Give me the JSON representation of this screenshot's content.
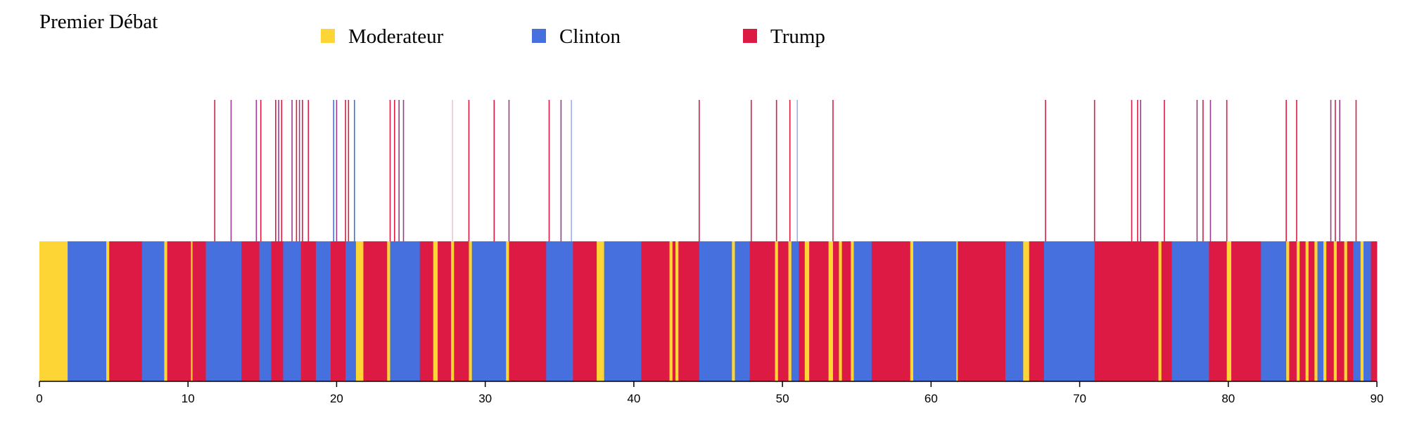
{
  "chart_data": {
    "type": "bar",
    "title": "Premier Débat",
    "xlabel": "",
    "ylabel": "",
    "xlim": [
      0,
      90
    ],
    "x_ticks": [
      "0",
      "10",
      "20",
      "30",
      "40",
      "50",
      "60",
      "70",
      "80",
      "90"
    ],
    "grid": false,
    "legend_position": "top",
    "legend": [
      {
        "name": "Moderateur",
        "color": "#fdd535"
      },
      {
        "name": "Clinton",
        "color": "#4570de"
      },
      {
        "name": "Trump",
        "color": "#dc1a43"
      }
    ],
    "segments": [
      {
        "start": 0.0,
        "end": 1.9,
        "speaker": "Moderateur"
      },
      {
        "start": 1.9,
        "end": 4.5,
        "speaker": "Clinton"
      },
      {
        "start": 4.5,
        "end": 4.7,
        "speaker": "Moderateur"
      },
      {
        "start": 4.7,
        "end": 6.9,
        "speaker": "Trump"
      },
      {
        "start": 6.9,
        "end": 8.4,
        "speaker": "Clinton"
      },
      {
        "start": 8.4,
        "end": 8.6,
        "speaker": "Moderateur"
      },
      {
        "start": 8.6,
        "end": 10.2,
        "speaker": "Trump"
      },
      {
        "start": 10.2,
        "end": 10.3,
        "speaker": "Moderateur"
      },
      {
        "start": 10.3,
        "end": 11.2,
        "speaker": "Trump"
      },
      {
        "start": 11.2,
        "end": 13.6,
        "speaker": "Clinton"
      },
      {
        "start": 13.6,
        "end": 14.8,
        "speaker": "Trump"
      },
      {
        "start": 14.8,
        "end": 15.6,
        "speaker": "Clinton"
      },
      {
        "start": 15.6,
        "end": 16.4,
        "speaker": "Trump"
      },
      {
        "start": 16.4,
        "end": 17.6,
        "speaker": "Clinton"
      },
      {
        "start": 17.6,
        "end": 18.6,
        "speaker": "Trump"
      },
      {
        "start": 18.6,
        "end": 19.6,
        "speaker": "Clinton"
      },
      {
        "start": 19.6,
        "end": 20.6,
        "speaker": "Trump"
      },
      {
        "start": 20.6,
        "end": 21.3,
        "speaker": "Clinton"
      },
      {
        "start": 21.3,
        "end": 21.8,
        "speaker": "Moderateur"
      },
      {
        "start": 21.8,
        "end": 23.4,
        "speaker": "Trump"
      },
      {
        "start": 23.4,
        "end": 23.6,
        "speaker": "Moderateur"
      },
      {
        "start": 23.6,
        "end": 25.6,
        "speaker": "Clinton"
      },
      {
        "start": 25.6,
        "end": 26.5,
        "speaker": "Trump"
      },
      {
        "start": 26.5,
        "end": 26.8,
        "speaker": "Moderateur"
      },
      {
        "start": 26.8,
        "end": 27.7,
        "speaker": "Trump"
      },
      {
        "start": 27.7,
        "end": 27.9,
        "speaker": "Moderateur"
      },
      {
        "start": 27.9,
        "end": 28.9,
        "speaker": "Trump"
      },
      {
        "start": 28.9,
        "end": 29.1,
        "speaker": "Moderateur"
      },
      {
        "start": 29.1,
        "end": 31.4,
        "speaker": "Clinton"
      },
      {
        "start": 31.4,
        "end": 31.6,
        "speaker": "Moderateur"
      },
      {
        "start": 31.6,
        "end": 34.1,
        "speaker": "Trump"
      },
      {
        "start": 34.1,
        "end": 35.9,
        "speaker": "Clinton"
      },
      {
        "start": 35.9,
        "end": 37.5,
        "speaker": "Trump"
      },
      {
        "start": 37.5,
        "end": 38.0,
        "speaker": "Moderateur"
      },
      {
        "start": 38.0,
        "end": 40.5,
        "speaker": "Clinton"
      },
      {
        "start": 40.5,
        "end": 42.4,
        "speaker": "Trump"
      },
      {
        "start": 42.4,
        "end": 42.6,
        "speaker": "Moderateur"
      },
      {
        "start": 42.6,
        "end": 42.8,
        "speaker": "Trump"
      },
      {
        "start": 42.8,
        "end": 43.0,
        "speaker": "Moderateur"
      },
      {
        "start": 43.0,
        "end": 44.4,
        "speaker": "Trump"
      },
      {
        "start": 44.4,
        "end": 46.6,
        "speaker": "Clinton"
      },
      {
        "start": 46.6,
        "end": 46.8,
        "speaker": "Moderateur"
      },
      {
        "start": 46.8,
        "end": 47.8,
        "speaker": "Clinton"
      },
      {
        "start": 47.8,
        "end": 49.5,
        "speaker": "Trump"
      },
      {
        "start": 49.5,
        "end": 49.7,
        "speaker": "Moderateur"
      },
      {
        "start": 49.7,
        "end": 50.4,
        "speaker": "Trump"
      },
      {
        "start": 50.4,
        "end": 50.6,
        "speaker": "Moderateur"
      },
      {
        "start": 50.6,
        "end": 51.1,
        "speaker": "Clinton"
      },
      {
        "start": 51.1,
        "end": 51.5,
        "speaker": "Trump"
      },
      {
        "start": 51.5,
        "end": 51.8,
        "speaker": "Moderateur"
      },
      {
        "start": 51.8,
        "end": 53.1,
        "speaker": "Trump"
      },
      {
        "start": 53.1,
        "end": 53.4,
        "speaker": "Moderateur"
      },
      {
        "start": 53.4,
        "end": 53.8,
        "speaker": "Trump"
      },
      {
        "start": 53.8,
        "end": 54.0,
        "speaker": "Moderateur"
      },
      {
        "start": 54.0,
        "end": 54.6,
        "speaker": "Trump"
      },
      {
        "start": 54.6,
        "end": 54.8,
        "speaker": "Moderateur"
      },
      {
        "start": 54.8,
        "end": 56.0,
        "speaker": "Clinton"
      },
      {
        "start": 56.0,
        "end": 58.6,
        "speaker": "Trump"
      },
      {
        "start": 58.6,
        "end": 58.8,
        "speaker": "Moderateur"
      },
      {
        "start": 58.8,
        "end": 61.7,
        "speaker": "Clinton"
      },
      {
        "start": 61.7,
        "end": 61.8,
        "speaker": "Moderateur"
      },
      {
        "start": 61.8,
        "end": 65.0,
        "speaker": "Trump"
      },
      {
        "start": 65.0,
        "end": 66.2,
        "speaker": "Clinton"
      },
      {
        "start": 66.2,
        "end": 66.6,
        "speaker": "Moderateur"
      },
      {
        "start": 66.6,
        "end": 67.6,
        "speaker": "Trump"
      },
      {
        "start": 67.6,
        "end": 71.0,
        "speaker": "Clinton"
      },
      {
        "start": 71.0,
        "end": 75.3,
        "speaker": "Trump"
      },
      {
        "start": 75.3,
        "end": 75.5,
        "speaker": "Moderateur"
      },
      {
        "start": 75.5,
        "end": 76.2,
        "speaker": "Trump"
      },
      {
        "start": 76.2,
        "end": 78.7,
        "speaker": "Clinton"
      },
      {
        "start": 78.7,
        "end": 79.9,
        "speaker": "Trump"
      },
      {
        "start": 79.9,
        "end": 80.2,
        "speaker": "Moderateur"
      },
      {
        "start": 80.2,
        "end": 82.2,
        "speaker": "Trump"
      },
      {
        "start": 82.2,
        "end": 83.9,
        "speaker": "Clinton"
      },
      {
        "start": 83.9,
        "end": 84.1,
        "speaker": "Moderateur"
      },
      {
        "start": 84.1,
        "end": 84.6,
        "speaker": "Trump"
      },
      {
        "start": 84.6,
        "end": 84.8,
        "speaker": "Moderateur"
      },
      {
        "start": 84.8,
        "end": 85.2,
        "speaker": "Trump"
      },
      {
        "start": 85.2,
        "end": 85.4,
        "speaker": "Moderateur"
      },
      {
        "start": 85.4,
        "end": 85.8,
        "speaker": "Trump"
      },
      {
        "start": 85.8,
        "end": 86.0,
        "speaker": "Moderateur"
      },
      {
        "start": 86.0,
        "end": 86.4,
        "speaker": "Clinton"
      },
      {
        "start": 86.4,
        "end": 86.6,
        "speaker": "Moderateur"
      },
      {
        "start": 86.6,
        "end": 87.1,
        "speaker": "Trump"
      },
      {
        "start": 87.1,
        "end": 87.3,
        "speaker": "Moderateur"
      },
      {
        "start": 87.3,
        "end": 87.8,
        "speaker": "Trump"
      },
      {
        "start": 87.8,
        "end": 88.0,
        "speaker": "Moderateur"
      },
      {
        "start": 88.0,
        "end": 88.4,
        "speaker": "Trump"
      },
      {
        "start": 88.4,
        "end": 88.9,
        "speaker": "Clinton"
      },
      {
        "start": 88.9,
        "end": 89.1,
        "speaker": "Moderateur"
      },
      {
        "start": 89.1,
        "end": 89.6,
        "speaker": "Clinton"
      },
      {
        "start": 89.6,
        "end": 90.0,
        "speaker": "Trump"
      }
    ],
    "interruptions": [
      {
        "x": 11.8,
        "color": "#dc1a43"
      },
      {
        "x": 12.9,
        "color": "#9b3a8c"
      },
      {
        "x": 14.6,
        "color": "#9b3a8c"
      },
      {
        "x": 14.9,
        "color": "#dc1a43"
      },
      {
        "x": 15.9,
        "color": "#dc1a43"
      },
      {
        "x": 16.1,
        "color": "#9b3a8c"
      },
      {
        "x": 16.3,
        "color": "#dc1a43"
      },
      {
        "x": 17.0,
        "color": "#9b3a8c"
      },
      {
        "x": 17.3,
        "color": "#dc1a43"
      },
      {
        "x": 17.5,
        "color": "#9b3a8c"
      },
      {
        "x": 17.7,
        "color": "#dc1a43"
      },
      {
        "x": 18.1,
        "color": "#dc1a43"
      },
      {
        "x": 19.8,
        "color": "#4570de"
      },
      {
        "x": 20.0,
        "color": "#9b3a8c"
      },
      {
        "x": 20.6,
        "color": "#dc1a43"
      },
      {
        "x": 20.8,
        "color": "#dc1a43"
      },
      {
        "x": 21.2,
        "color": "#4570de"
      },
      {
        "x": 23.6,
        "color": "#dc1a43"
      },
      {
        "x": 23.9,
        "color": "#dc1a43"
      },
      {
        "x": 24.2,
        "color": "#9b3a8c"
      },
      {
        "x": 24.5,
        "color": "#9b3a8c"
      },
      {
        "x": 27.8,
        "color": "#f2c6d0"
      },
      {
        "x": 28.9,
        "color": "#dc1a43"
      },
      {
        "x": 30.6,
        "color": "#dc1a43"
      },
      {
        "x": 31.6,
        "color": "#9b3a8c"
      },
      {
        "x": 34.3,
        "color": "#dc1a43"
      },
      {
        "x": 35.1,
        "color": "#9b3a8c"
      },
      {
        "x": 35.8,
        "color": "#9bb0ec"
      },
      {
        "x": 44.4,
        "color": "#dc1a43"
      },
      {
        "x": 47.9,
        "color": "#dc1a43"
      },
      {
        "x": 49.6,
        "color": "#dc1a43"
      },
      {
        "x": 50.5,
        "color": "#dc1a43"
      },
      {
        "x": 51.0,
        "color": "#9bb0ec"
      },
      {
        "x": 53.4,
        "color": "#dc1a43"
      },
      {
        "x": 67.7,
        "color": "#dc1a43"
      },
      {
        "x": 71.0,
        "color": "#dc1a43"
      },
      {
        "x": 73.5,
        "color": "#dc1a43"
      },
      {
        "x": 73.9,
        "color": "#dc1a43"
      },
      {
        "x": 74.1,
        "color": "#9b3a8c"
      },
      {
        "x": 75.7,
        "color": "#dc1a43"
      },
      {
        "x": 77.9,
        "color": "#9b3a8c"
      },
      {
        "x": 78.3,
        "color": "#dc1a43"
      },
      {
        "x": 78.8,
        "color": "#9b3a8c"
      },
      {
        "x": 79.9,
        "color": "#dc1a43"
      },
      {
        "x": 83.9,
        "color": "#dc1a43"
      },
      {
        "x": 84.6,
        "color": "#dc1a43"
      },
      {
        "x": 86.9,
        "color": "#9b3a8c"
      },
      {
        "x": 87.2,
        "color": "#dc1a43"
      },
      {
        "x": 87.5,
        "color": "#9b3a8c"
      },
      {
        "x": 88.6,
        "color": "#dc1a43"
      }
    ]
  }
}
